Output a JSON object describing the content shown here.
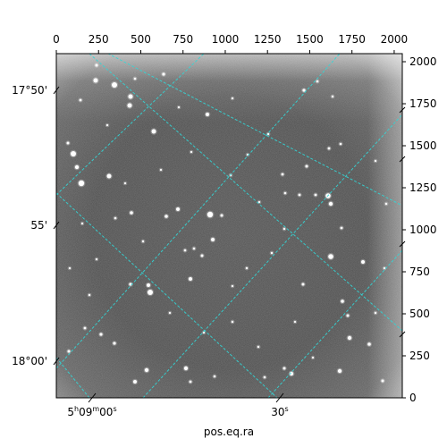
{
  "figure": {
    "xlabel": "pos.eq.ra",
    "colors": {
      "grid": "#33d6d6",
      "axis": "#000000",
      "background": "#ffffff"
    }
  },
  "chart_data": {
    "type": "heatmap",
    "image": "grayscale astronomical star field",
    "pixel_axes": {
      "xlim": [
        0,
        2048
      ],
      "ylim": [
        0,
        2048
      ],
      "bottom_ticks": [
        "0",
        "250",
        "500",
        "750",
        "1000",
        "1250",
        "1500",
        "1750",
        "2000"
      ],
      "right_ticks": [
        "0",
        "250",
        "500",
        "750",
        "1000",
        "1250",
        "1500",
        "1750",
        "2000"
      ]
    },
    "world_axes": {
      "ra_ticks": [
        {
          "h": "5",
          "m": "09",
          "s": "00"
        },
        {
          "s": "30"
        }
      ],
      "dec_ticks": [
        "17°50'",
        "55'",
        "18°00'"
      ]
    },
    "grid": true
  }
}
